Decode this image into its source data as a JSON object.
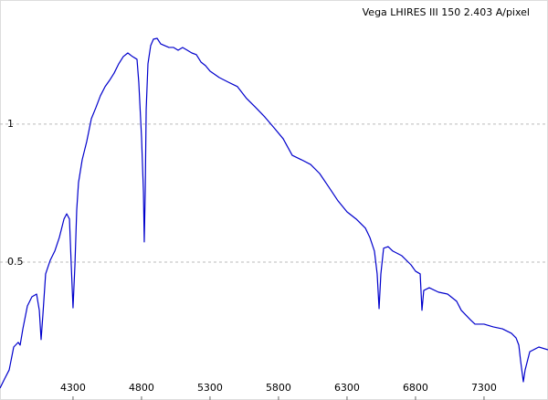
{
  "chart_data": {
    "type": "line",
    "title": "Vega LHIRES III 150   2.403 A/pixel",
    "x": [
      3767,
      3800,
      3834,
      3867,
      3900,
      3914,
      3934,
      3967,
      4000,
      4034,
      4054,
      4067,
      4080,
      4100,
      4134,
      4167,
      4200,
      4234,
      4254,
      4274,
      4287,
      4300,
      4314,
      4327,
      4340,
      4367,
      4400,
      4434,
      4467,
      4500,
      4534,
      4567,
      4600,
      4634,
      4667,
      4700,
      4734,
      4767,
      4780,
      4800,
      4814,
      4820,
      4827,
      4834,
      4847,
      4867,
      4887,
      4914,
      4940,
      4967,
      5000,
      5034,
      5067,
      5100,
      5134,
      5167,
      5200,
      5234,
      5267,
      5300,
      5367,
      5434,
      5500,
      5567,
      5634,
      5700,
      5767,
      5834,
      5900,
      5967,
      6034,
      6100,
      6167,
      6234,
      6300,
      6367,
      6434,
      6467,
      6500,
      6520,
      6534,
      6547,
      6567,
      6600,
      6634,
      6700,
      6767,
      6800,
      6834,
      6847,
      6860,
      6900,
      6967,
      7034,
      7100,
      7134,
      7167,
      7200,
      7234,
      7300,
      7367,
      7434,
      7500,
      7534,
      7554,
      7567,
      7587,
      7600,
      7634,
      7700,
      7767
    ],
    "series": [
      {
        "color": "#0000cc",
        "values": [
          0.043,
          0.076,
          0.109,
          0.192,
          0.209,
          0.199,
          0.258,
          0.341,
          0.374,
          0.384,
          0.325,
          0.219,
          0.308,
          0.457,
          0.507,
          0.54,
          0.589,
          0.656,
          0.675,
          0.656,
          0.49,
          0.334,
          0.49,
          0.689,
          0.788,
          0.871,
          0.937,
          1.02,
          1.06,
          1.103,
          1.136,
          1.159,
          1.185,
          1.219,
          1.245,
          1.258,
          1.245,
          1.235,
          1.152,
          0.954,
          0.755,
          0.573,
          0.755,
          1.053,
          1.219,
          1.285,
          1.308,
          1.311,
          1.291,
          1.285,
          1.278,
          1.278,
          1.268,
          1.278,
          1.268,
          1.258,
          1.252,
          1.225,
          1.212,
          1.192,
          1.169,
          1.152,
          1.136,
          1.093,
          1.06,
          1.026,
          0.987,
          0.947,
          0.887,
          0.871,
          0.854,
          0.821,
          0.772,
          0.722,
          0.682,
          0.656,
          0.623,
          0.589,
          0.54,
          0.457,
          0.331,
          0.457,
          0.55,
          0.556,
          0.54,
          0.523,
          0.49,
          0.467,
          0.457,
          0.325,
          0.397,
          0.407,
          0.391,
          0.384,
          0.358,
          0.325,
          0.308,
          0.291,
          0.275,
          0.275,
          0.265,
          0.258,
          0.242,
          0.225,
          0.199,
          0.142,
          0.066,
          0.109,
          0.175,
          0.192,
          0.182
        ]
      }
    ],
    "xlim": [
      3767,
      7767
    ],
    "xticks": [
      4300,
      4800,
      5300,
      5800,
      6300,
      6800,
      7300
    ],
    "ylim": [
      0,
      1.45
    ],
    "yticks": [
      0.5,
      1
    ],
    "grid": true
  }
}
